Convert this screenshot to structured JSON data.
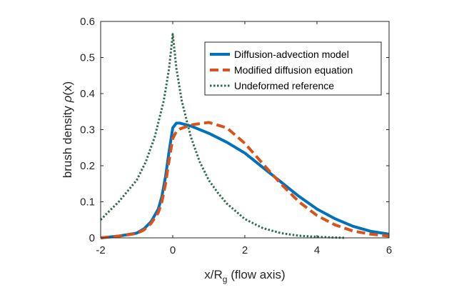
{
  "chart_data": {
    "type": "line",
    "title": "",
    "xlabel": {
      "main": "x/R",
      "sub": "g",
      "suffix": " (flow axis)"
    },
    "ylabel": {
      "prefix": "brush density ",
      "symbol": "ρ",
      "suffix": "(x)"
    },
    "xlim": [
      -2,
      6
    ],
    "ylim": [
      0,
      0.6
    ],
    "xticks": [
      -2,
      0,
      2,
      4,
      6
    ],
    "xtick_labels": [
      "-2",
      "0",
      "2",
      "4",
      "6"
    ],
    "yticks": [
      0,
      0.1,
      0.2,
      0.3,
      0.4,
      0.5,
      0.6
    ],
    "ytick_labels": [
      "0",
      "0.1",
      "0.2",
      "0.3",
      "0.4",
      "0.5",
      "0.6"
    ],
    "grid": false,
    "legend_position": "top-right",
    "series": [
      {
        "name": "Diffusion-advection model",
        "color": "#0072BD",
        "style": "solid",
        "x": [
          -2,
          -1.5,
          -1,
          -0.8,
          -0.6,
          -0.4,
          -0.3,
          -0.2,
          -0.1,
          0,
          0.1,
          0.2,
          0.5,
          1,
          1.5,
          2,
          2.5,
          3,
          3.5,
          4,
          4.5,
          5,
          5.5,
          6
        ],
        "y": [
          0.0,
          0.005,
          0.013,
          0.025,
          0.045,
          0.08,
          0.115,
          0.17,
          0.24,
          0.305,
          0.318,
          0.318,
          0.31,
          0.29,
          0.265,
          0.235,
          0.195,
          0.155,
          0.115,
          0.08,
          0.053,
          0.032,
          0.018,
          0.01
        ]
      },
      {
        "name": "Modified diffusion equation",
        "color": "#D95319",
        "style": "dashed",
        "x": [
          -2,
          -1.5,
          -1,
          -0.8,
          -0.6,
          -0.4,
          -0.3,
          -0.2,
          -0.1,
          0,
          0.1,
          0.2,
          0.5,
          1,
          1.5,
          2,
          2.5,
          3,
          3.5,
          4,
          4.5,
          5,
          5.5,
          6
        ],
        "y": [
          0.0,
          0.005,
          0.012,
          0.022,
          0.04,
          0.07,
          0.1,
          0.15,
          0.215,
          0.275,
          0.295,
          0.302,
          0.313,
          0.32,
          0.305,
          0.262,
          0.205,
          0.15,
          0.1,
          0.062,
          0.036,
          0.019,
          0.01,
          0.005
        ]
      },
      {
        "name": "Undeformed reference",
        "color": "#2E6B4F",
        "style": "dotted",
        "x": [
          -2,
          -1.75,
          -1.5,
          -1.25,
          -1,
          -0.75,
          -0.5,
          -0.25,
          -0.1,
          0,
          0.1,
          0.25,
          0.5,
          0.75,
          1,
          1.25,
          1.5,
          2,
          2.5,
          3,
          3.5,
          4,
          4.5,
          4.75
        ],
        "y": [
          0.05,
          0.075,
          0.1,
          0.13,
          0.16,
          0.21,
          0.28,
          0.38,
          0.47,
          0.565,
          0.47,
          0.38,
          0.28,
          0.21,
          0.16,
          0.125,
          0.095,
          0.052,
          0.027,
          0.013,
          0.006,
          0.003,
          0.001,
          0.0
        ]
      }
    ]
  }
}
